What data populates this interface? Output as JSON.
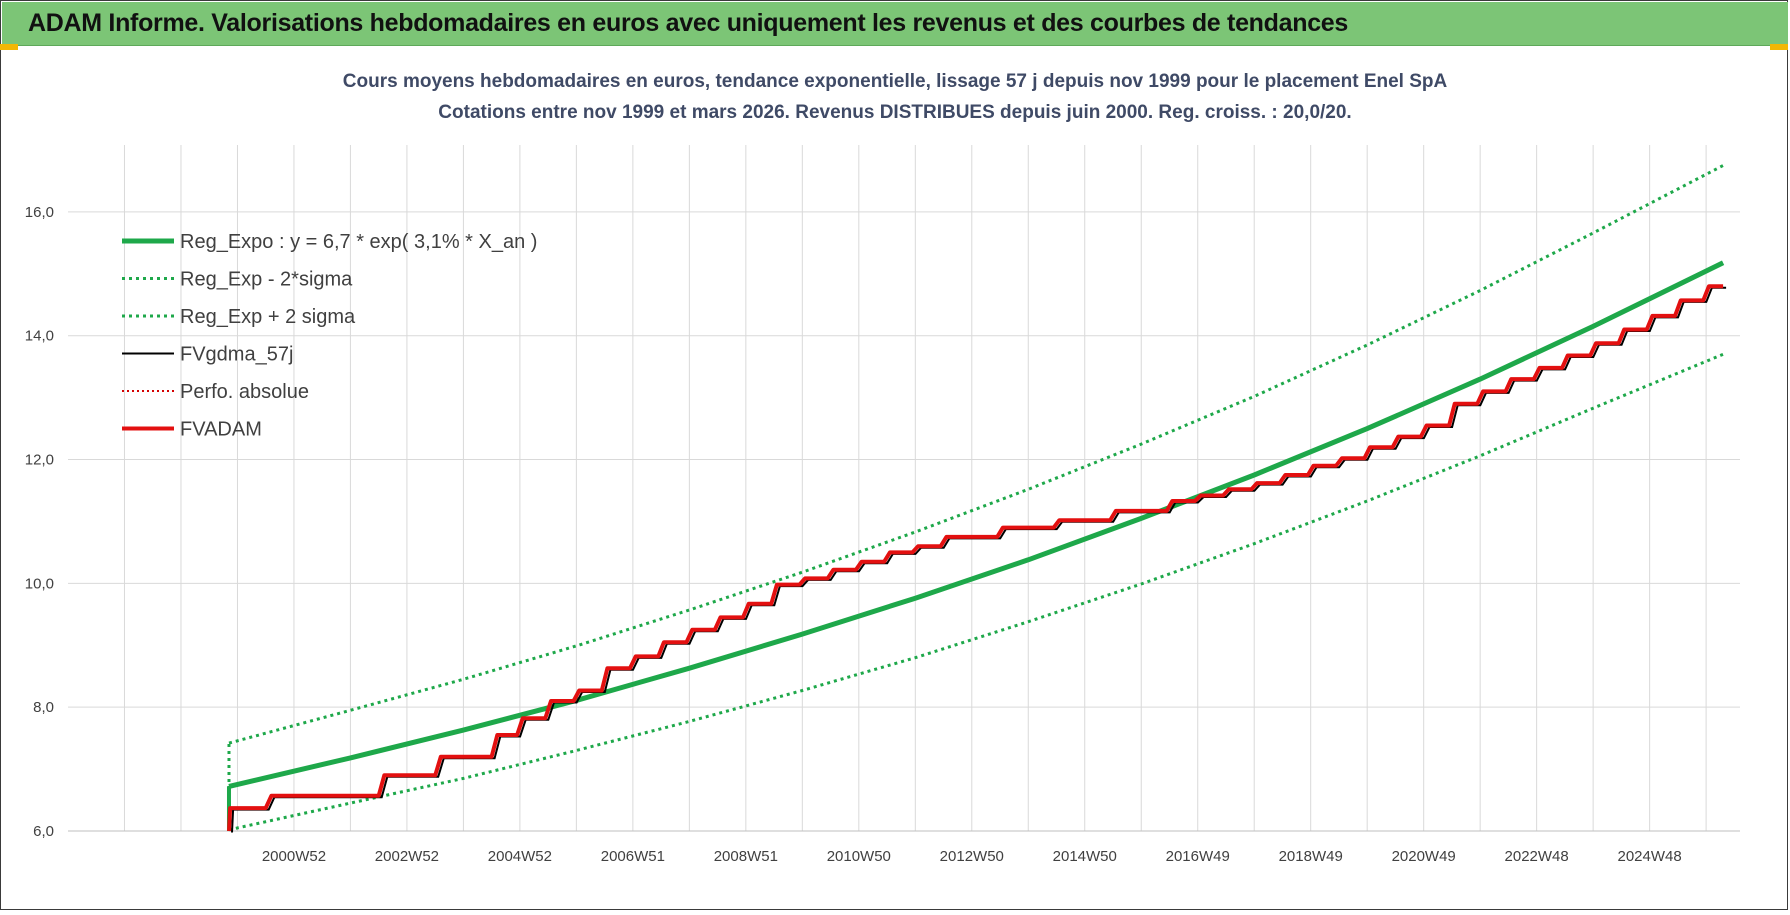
{
  "header": {
    "title": "ADAM Informe. Valorisations hebdomadaires en euros avec uniquement les revenus et des courbes de tendances"
  },
  "colors": {
    "header_bg": "#7cc576",
    "reg_expo": "#1ea84a",
    "sigma": "#1ea84a",
    "fvgdma": "#000000",
    "perfo": "#d40000",
    "fvadam": "#e31010",
    "grid": "#d9d9d9"
  },
  "chart_data": {
    "type": "line",
    "title": "Cours moyens hebdomadaires en euros, tendance exponentielle, lissage 57 j depuis nov 1999  pour le  placement Enel SpA",
    "subtitle": "Cotations entre nov 1999 et mars 2026. Revenus DISTRIBUES depuis juin 2000. Reg. croiss. : 20,0/20.",
    "x_unit": "year",
    "x_range": [
      1997.0,
      2026.6
    ],
    "y_range": [
      6.0,
      17.0
    ],
    "y_ticks": [
      6.0,
      8.0,
      10.0,
      12.0,
      14.0,
      16.0
    ],
    "y_tick_labels": [
      "6,0",
      "8,0",
      "10,0",
      "12,0",
      "14,0",
      "16,0"
    ],
    "x_ticks": [
      {
        "x": 2001.0,
        "label": "2000W52"
      },
      {
        "x": 2003.0,
        "label": "2002W52"
      },
      {
        "x": 2005.0,
        "label": "2004W52"
      },
      {
        "x": 2007.0,
        "label": "2006W51"
      },
      {
        "x": 2009.0,
        "label": "2008W51"
      },
      {
        "x": 2011.0,
        "label": "2010W50"
      },
      {
        "x": 2013.0,
        "label": "2012W50"
      },
      {
        "x": 2015.0,
        "label": "2014W50"
      },
      {
        "x": 2017.0,
        "label": "2016W49"
      },
      {
        "x": 2019.0,
        "label": "2018W49"
      },
      {
        "x": 2021.0,
        "label": "2020W49"
      },
      {
        "x": 2023.0,
        "label": "2022W48"
      },
      {
        "x": 2025.0,
        "label": "2024W48"
      }
    ],
    "legend": {
      "position": "top-left",
      "entries": [
        {
          "key": "reg_expo",
          "label": "Reg_Expo : y = 6,7 * exp( 3,1% *  X_an )",
          "style": "thick"
        },
        {
          "key": "reg_minus",
          "label": "Reg_Exp - 2*sigma",
          "style": "dotted"
        },
        {
          "key": "reg_plus",
          "label": "Reg_Exp + 2 sigma",
          "style": "dotted"
        },
        {
          "key": "fvgdma",
          "label": "FVgdma_57j",
          "style": "solid"
        },
        {
          "key": "perfo",
          "label": "Perfo. absolue",
          "style": "dotted"
        },
        {
          "key": "fvadam",
          "label": "FVADAM",
          "style": "thick"
        }
      ]
    },
    "series": [
      {
        "key": "reg_expo",
        "x": [
          1999.85,
          2002.0,
          2004.0,
          2006.0,
          2008.0,
          2010.0,
          2012.0,
          2014.0,
          2016.0,
          2018.0,
          2020.0,
          2022.0,
          2024.0,
          2026.3
        ],
        "y": [
          6.72,
          7.18,
          7.63,
          8.11,
          8.63,
          9.18,
          9.76,
          10.38,
          11.05,
          11.75,
          12.5,
          13.3,
          14.15,
          15.18
        ]
      },
      {
        "key": "reg_minus",
        "x": [
          1999.85,
          2002.0,
          2004.0,
          2006.0,
          2008.0,
          2010.0,
          2012.0,
          2014.0,
          2016.0,
          2018.0,
          2020.0,
          2022.0,
          2024.0,
          2026.3
        ],
        "y": [
          6.02,
          6.45,
          6.85,
          7.3,
          7.77,
          8.27,
          8.8,
          9.38,
          9.99,
          10.64,
          11.33,
          12.06,
          12.83,
          13.7
        ]
      },
      {
        "key": "reg_plus",
        "x": [
          1999.85,
          2002.0,
          2004.0,
          2006.0,
          2008.0,
          2010.0,
          2012.0,
          2014.0,
          2016.0,
          2018.0,
          2020.0,
          2022.0,
          2024.0,
          2026.3
        ],
        "y": [
          7.42,
          7.95,
          8.45,
          8.99,
          9.57,
          10.18,
          10.83,
          11.52,
          12.25,
          13.02,
          13.85,
          14.73,
          15.66,
          16.75
        ]
      },
      {
        "key": "fvadam",
        "x": [
          1999.85,
          1999.87,
          2000.5,
          2000.6,
          2002.5,
          2002.6,
          2003.5,
          2003.6,
          2004.5,
          2004.6,
          2004.95,
          2005.05,
          2005.45,
          2005.55,
          2005.95,
          2006.05,
          2006.45,
          2006.55,
          2006.95,
          2007.05,
          2007.45,
          2007.55,
          2007.95,
          2008.05,
          2008.45,
          2008.55,
          2008.95,
          2009.05,
          2009.45,
          2009.55,
          2009.95,
          2010.05,
          2010.45,
          2010.55,
          2010.95,
          2011.05,
          2011.45,
          2011.55,
          2011.95,
          2012.05,
          2012.45,
          2012.55,
          2013.45,
          2013.55,
          2014.45,
          2014.55,
          2015.45,
          2015.55,
          2016.45,
          2016.55,
          2016.95,
          2017.05,
          2017.45,
          2017.55,
          2017.95,
          2018.05,
          2018.45,
          2018.55,
          2018.95,
          2019.05,
          2019.45,
          2019.55,
          2019.95,
          2020.05,
          2020.45,
          2020.55,
          2020.95,
          2021.05,
          2021.45,
          2021.55,
          2021.95,
          2022.05,
          2022.45,
          2022.55,
          2022.95,
          2023.05,
          2023.45,
          2023.55,
          2023.95,
          2024.05,
          2024.45,
          2024.55,
          2024.95,
          2025.05,
          2025.45,
          2025.55,
          2025.95,
          2026.05,
          2026.3
        ],
        "y": [
          6.0,
          6.37,
          6.37,
          6.57,
          6.57,
          6.9,
          6.9,
          7.2,
          7.2,
          7.55,
          7.55,
          7.82,
          7.82,
          8.1,
          8.1,
          8.27,
          8.27,
          8.63,
          8.63,
          8.82,
          8.82,
          9.05,
          9.05,
          9.25,
          9.25,
          9.45,
          9.45,
          9.67,
          9.67,
          9.98,
          9.98,
          10.08,
          10.08,
          10.22,
          10.22,
          10.35,
          10.35,
          10.5,
          10.5,
          10.6,
          10.6,
          10.75,
          10.75,
          10.9,
          10.9,
          11.02,
          11.02,
          11.17,
          11.17,
          11.33,
          11.33,
          11.42,
          11.42,
          11.52,
          11.52,
          11.62,
          11.62,
          11.75,
          11.75,
          11.9,
          11.9,
          12.02,
          12.02,
          12.2,
          12.2,
          12.37,
          12.37,
          12.55,
          12.55,
          12.9,
          12.9,
          13.1,
          13.1,
          13.3,
          13.3,
          13.48,
          13.48,
          13.68,
          13.68,
          13.88,
          13.88,
          14.1,
          14.1,
          14.32,
          14.32,
          14.57,
          14.57,
          14.8,
          14.8
        ]
      }
    ]
  }
}
